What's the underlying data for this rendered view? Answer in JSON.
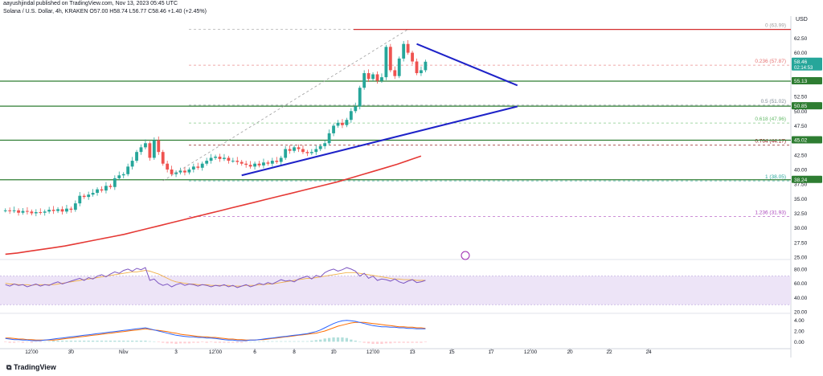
{
  "header": {
    "published_line": "aayushjindal published on TradingView.com, Nov 13, 2023 05:45 UTC",
    "symbol_line": "Solana / U.S. Dollar, 4h, KRAKEN  O57.00  H58.74  L56.77  C58.46  +1.40 (+2.45%)"
  },
  "footer": {
    "brand": "TradingView"
  },
  "chart_data": {
    "type": "candlestick",
    "title": "Solana / U.S. Dollar, 4h, KRAKEN",
    "currency_label": "USD",
    "ohlc": {
      "open": 57.0,
      "high": 58.74,
      "low": 56.77,
      "close": 58.46,
      "change": "+1.40 (+2.45%)"
    },
    "y_range": [
      25.0,
      66.0
    ],
    "y_ticks": [
      25,
      27.5,
      30,
      32.5,
      35,
      37.5,
      40,
      42.5,
      45,
      47.5,
      50,
      52.5,
      55,
      57.5,
      60,
      62.5
    ],
    "y_tick_labels": [
      "25.00",
      "27.50",
      "30.00",
      "32.50",
      "35.00",
      "37.50",
      "40.00",
      "42.50",
      "45.00",
      "47.50",
      "50.00",
      "52.50",
      "55.00",
      "57.50",
      "60.00",
      "62.50"
    ],
    "x_bar_count": 180,
    "x_ticks": [
      {
        "bar": 6,
        "label": "12:00"
      },
      {
        "bar": 15,
        "label": "30"
      },
      {
        "bar": 27,
        "label": "Nov"
      },
      {
        "bar": 39,
        "label": "3"
      },
      {
        "bar": 48,
        "label": "12:00"
      },
      {
        "bar": 57,
        "label": "6"
      },
      {
        "bar": 66,
        "label": "8"
      },
      {
        "bar": 75,
        "label": "10"
      },
      {
        "bar": 84,
        "label": "12:00"
      },
      {
        "bar": 93,
        "label": "13"
      },
      {
        "bar": 102,
        "label": "15"
      },
      {
        "bar": 111,
        "label": "17"
      },
      {
        "bar": 120,
        "label": "12:00"
      },
      {
        "bar": 129,
        "label": "20"
      },
      {
        "bar": 138,
        "label": "22"
      },
      {
        "bar": 147,
        "label": "24"
      }
    ],
    "close_series": [
      33.0,
      32.9,
      33.0,
      32.6,
      32.9,
      32.8,
      32.5,
      32.7,
      32.6,
      32.8,
      33.1,
      32.9,
      33.2,
      32.8,
      33.3,
      33.1,
      34.2,
      35.5,
      35.3,
      35.7,
      36.0,
      36.6,
      36.4,
      37.2,
      37.0,
      38.5,
      39.0,
      39.2,
      40.5,
      41.5,
      43.0,
      43.8,
      44.5,
      42.0,
      45.0,
      43.0,
      41.0,
      40.0,
      39.2,
      39.5,
      39.8,
      39.5,
      40.0,
      40.5,
      40.3,
      41.0,
      41.5,
      42.0,
      42.2,
      41.8,
      42.0,
      41.5,
      41.5,
      41.3,
      41.0,
      40.8,
      40.5,
      41.0,
      40.7,
      41.2,
      41.0,
      41.5,
      41.3,
      42.0,
      43.5,
      43.2,
      43.8,
      43.5,
      43.0,
      42.8,
      43.0,
      43.5,
      44.0,
      44.5,
      46.2,
      47.5,
      48.0,
      47.6,
      48.5,
      50.0,
      50.8,
      54.0,
      56.5,
      55.5,
      56.3,
      55.2,
      55.8,
      61.0,
      57.0,
      56.0,
      59.0,
      61.5,
      60.0,
      58.5,
      56.5,
      57.0,
      58.46
    ],
    "fib_levels": [
      {
        "ratio": "0",
        "price": 63.99,
        "label": "0 (63.99)",
        "color": "#9e9e9e"
      },
      {
        "ratio": "0.236",
        "price": 57.87,
        "label": "0.236 (57.87)",
        "color": "#e57373"
      },
      {
        "ratio": "0.5",
        "price": 51.02,
        "label": "0.5 (51.02)",
        "color": "#7e8a95"
      },
      {
        "ratio": "0.618",
        "price": 47.96,
        "label": "0.618 (47.96)",
        "color": "#66bb6a"
      },
      {
        "ratio": "0.764",
        "price": 44.17,
        "label": "0.764 (44.17)",
        "color": "#8d1010"
      },
      {
        "ratio": "1",
        "price": 38.05,
        "label": "1 (38.05)",
        "color": "#26a69a"
      },
      {
        "ratio": "1.236",
        "price": 31.93,
        "label": "1.236 (31.93)",
        "color": "#ab47bc"
      }
    ],
    "price_badges": [
      {
        "price": 58.46,
        "label": "58.46",
        "sub_label": "02:14:53",
        "color": "#26a69a"
      },
      {
        "price": 55.13,
        "label": "55.13",
        "color": "#2e7d32"
      },
      {
        "price": 50.85,
        "label": "50.85",
        "color": "#2e7d32"
      },
      {
        "price": 45.02,
        "label": "45.02",
        "color": "#2e7d32"
      },
      {
        "price": 38.24,
        "label": "38.24",
        "color": "#2e7d32"
      }
    ],
    "horizontal_lines": [
      {
        "name": "resistance-line",
        "price": 63.99,
        "color": "#d32f2f"
      },
      {
        "name": "support-line-55",
        "price": 55.13,
        "color": "#2e7d32"
      },
      {
        "name": "support-line-50",
        "price": 50.85,
        "color": "#2e7d32"
      },
      {
        "name": "support-line-45",
        "price": 45.02,
        "color": "#2e7d32"
      },
      {
        "name": "support-line-38",
        "price": 38.24,
        "color": "#2e7d32"
      }
    ],
    "trendlines": [
      {
        "name": "bearish-trendline",
        "from": {
          "bar": 94,
          "price": 61.5
        },
        "to": {
          "bar": 117,
          "price": 54.4
        },
        "color": "#1e22c8"
      },
      {
        "name": "bullish-trendline",
        "from": {
          "bar": 54,
          "price": 39.0
        },
        "to": {
          "bar": 117,
          "price": 50.8
        },
        "color": "#1e22c8"
      },
      {
        "name": "fib-diagonal",
        "from": {
          "bar": 36,
          "price": 38.05
        },
        "to": {
          "bar": 92,
          "price": 63.99
        },
        "color": "#9e9e9e"
      }
    ],
    "ma_series": [
      25.5,
      25.7,
      26.0,
      26.3,
      26.6,
      26.9,
      27.3,
      27.7,
      28.1,
      28.5,
      28.9,
      29.4,
      29.9,
      30.4,
      30.9,
      31.4,
      31.9,
      32.4,
      32.9,
      33.4,
      33.9,
      34.4,
      34.9,
      35.4,
      35.9,
      36.4,
      36.9,
      37.4,
      37.9,
      38.5,
      39.1,
      39.7,
      40.3,
      40.9,
      41.6,
      42.3
    ],
    "ma_color": "#e53935",
    "rsi": {
      "range": [
        20,
        90
      ],
      "ticks": [
        20,
        40,
        60,
        80
      ],
      "tick_labels": [
        "20.00",
        "40.00",
        "60.00",
        "80.00"
      ],
      "band": [
        30,
        70
      ],
      "values": [
        58,
        56,
        59,
        57,
        58,
        55,
        57,
        59,
        56,
        58,
        57,
        60,
        62,
        59,
        61,
        63,
        65,
        67,
        64,
        68,
        66,
        70,
        72,
        69,
        73,
        76,
        74,
        78,
        80,
        77,
        81,
        79,
        82,
        64,
        66,
        60,
        57,
        59,
        55,
        58,
        60,
        57,
        59,
        58,
        56,
        58,
        57,
        55,
        57,
        56,
        58,
        55,
        57,
        54,
        56,
        58,
        55,
        57,
        60,
        58,
        61,
        59,
        62,
        65,
        63,
        64,
        62,
        66,
        68,
        70,
        66,
        71,
        69,
        75,
        78,
        80,
        77,
        79,
        82,
        80,
        77,
        70,
        74,
        67,
        70,
        64,
        66,
        65,
        63,
        66,
        62,
        60,
        63,
        65,
        61,
        62,
        64
      ],
      "signal_values": [
        60,
        59,
        59,
        58,
        58,
        58,
        57,
        58,
        58,
        58,
        58,
        58,
        59,
        60,
        61,
        62,
        63,
        64,
        65,
        66,
        67,
        68,
        69,
        70,
        71,
        72,
        73,
        74,
        75,
        76,
        76,
        77,
        78,
        77,
        75,
        73,
        70,
        67,
        64,
        62,
        61,
        60,
        59,
        59,
        58,
        58,
        58,
        57,
        57,
        57,
        57,
        57,
        56,
        56,
        56,
        57,
        57,
        57,
        58,
        58,
        59,
        59,
        60,
        61,
        62,
        63,
        64,
        65,
        66,
        67,
        67,
        68,
        69,
        70,
        71,
        72,
        73,
        74,
        75,
        75,
        75,
        74,
        73,
        72,
        71,
        70,
        69,
        68,
        67,
        66,
        66,
        65,
        65,
        65,
        64,
        64,
        64
      ],
      "line_color": "#7e57c2",
      "signal_color": "#f0b14a",
      "band_color": "#ede4f7"
    },
    "macd": {
      "range": [
        -1.0,
        5.0
      ],
      "ticks": [
        0,
        2,
        4
      ],
      "tick_labels": [
        "0.00",
        "2.00",
        "4.00"
      ],
      "macd": [
        0.6,
        0.5,
        0.4,
        0.4,
        0.3,
        0.3,
        0.2,
        0.2,
        0.2,
        0.3,
        0.4,
        0.5,
        0.6,
        0.7,
        0.8,
        0.9,
        1.0,
        1.1,
        1.2,
        1.3,
        1.4,
        1.5,
        1.6,
        1.7,
        1.8,
        1.9,
        2.0,
        2.1,
        2.2,
        2.3,
        2.4,
        2.5,
        2.6,
        2.4,
        2.2,
        2.0,
        1.8,
        1.6,
        1.4,
        1.2,
        1.1,
        1.0,
        0.9,
        0.9,
        0.8,
        0.8,
        0.7,
        0.7,
        0.6,
        0.5,
        0.4,
        0.3,
        0.3,
        0.2,
        0.2,
        0.2,
        0.3,
        0.3,
        0.4,
        0.5,
        0.6,
        0.7,
        0.8,
        0.9,
        1.0,
        1.1,
        1.2,
        1.3,
        1.4,
        1.5,
        1.7,
        1.9,
        2.2,
        2.6,
        3.0,
        3.4,
        3.7,
        3.9,
        4.0,
        3.9,
        3.8,
        3.6,
        3.4,
        3.2,
        3.0,
        2.9,
        2.8,
        2.8,
        2.7,
        2.7,
        2.6,
        2.6,
        2.5,
        2.5,
        2.4,
        2.4,
        2.4
      ],
      "signal": [
        0.7,
        0.7,
        0.6,
        0.5,
        0.5,
        0.4,
        0.4,
        0.3,
        0.3,
        0.3,
        0.3,
        0.3,
        0.4,
        0.5,
        0.6,
        0.7,
        0.8,
        0.9,
        1.0,
        1.1,
        1.2,
        1.3,
        1.4,
        1.5,
        1.6,
        1.7,
        1.8,
        1.9,
        2.0,
        2.1,
        2.2,
        2.3,
        2.4,
        2.3,
        2.2,
        2.1,
        2.0,
        1.9,
        1.7,
        1.6,
        1.4,
        1.3,
        1.2,
        1.1,
        1.0,
        0.9,
        0.9,
        0.8,
        0.8,
        0.7,
        0.6,
        0.5,
        0.5,
        0.4,
        0.4,
        0.3,
        0.3,
        0.3,
        0.4,
        0.4,
        0.5,
        0.6,
        0.7,
        0.8,
        0.9,
        1.0,
        1.1,
        1.2,
        1.3,
        1.4,
        1.5,
        1.6,
        1.8,
        2.0,
        2.3,
        2.6,
        2.9,
        3.1,
        3.3,
        3.5,
        3.6,
        3.6,
        3.6,
        3.5,
        3.4,
        3.3,
        3.2,
        3.1,
        3.0,
        2.9,
        2.8,
        2.8,
        2.7,
        2.7,
        2.6,
        2.6,
        2.5
      ],
      "macd_color": "#2962ff",
      "signal_color": "#ff6d00",
      "hist_up": "#b2dfdb",
      "hist_down": "#ffcdd2"
    },
    "colors": {
      "up": "#26a69a",
      "down": "#ef5350"
    }
  }
}
